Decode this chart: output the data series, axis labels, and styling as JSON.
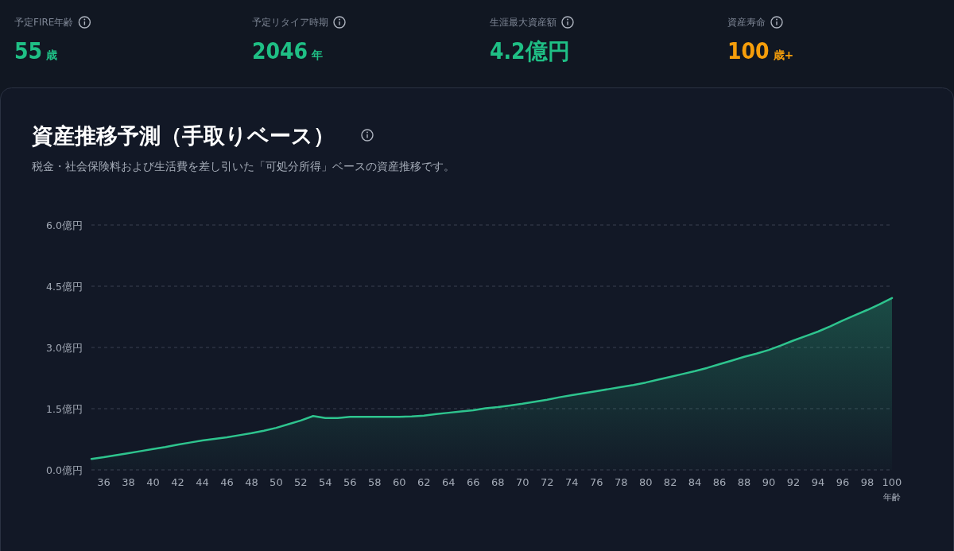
{
  "chart_data": [
    {
      "type": "other",
      "title": "予定FIRE年齢",
      "annotations": [
        "55",
        "歳"
      ],
      "color": "#1fbf85"
    },
    {
      "type": "other",
      "title": "予定リタイア時期",
      "annotations": [
        "2046",
        "年"
      ],
      "color": "#1fbf85"
    },
    {
      "type": "other",
      "title": "生涯最大資産額",
      "annotations": [
        "4.2億円"
      ],
      "color": "#1fbf85"
    },
    {
      "type": "other",
      "title": "資産寿命",
      "annotations": [
        "100",
        "歳+"
      ],
      "color": "#f59e0b"
    },
    {
      "type": "area",
      "title": "資産推移予測（手取りベース）",
      "subtitle": "税金・社会保険料および生活費を差し引いた「可処分所得」ベースの資産推移です。",
      "xlabel": "年齢",
      "x": [
        35,
        36,
        37,
        38,
        39,
        40,
        41,
        42,
        43,
        44,
        45,
        46,
        47,
        48,
        49,
        50,
        51,
        52,
        53,
        54,
        55,
        56,
        58,
        60,
        61,
        62,
        63,
        64,
        65,
        66,
        67,
        68,
        69,
        70,
        71,
        72,
        73,
        74,
        75,
        76,
        77,
        78,
        79,
        80,
        81,
        82,
        83,
        84,
        85,
        86,
        87,
        88,
        89,
        90,
        91,
        92,
        93,
        94,
        95,
        96,
        97,
        98,
        99,
        100
      ],
      "values": [
        0.27,
        0.31,
        0.36,
        0.41,
        0.46,
        0.51,
        0.56,
        0.62,
        0.67,
        0.72,
        0.76,
        0.8,
        0.85,
        0.9,
        0.96,
        1.03,
        1.12,
        1.21,
        1.32,
        1.27,
        1.27,
        1.3,
        1.3,
        1.3,
        1.31,
        1.33,
        1.37,
        1.4,
        1.43,
        1.46,
        1.51,
        1.54,
        1.58,
        1.62,
        1.67,
        1.72,
        1.78,
        1.83,
        1.88,
        1.93,
        1.98,
        2.03,
        2.08,
        2.14,
        2.21,
        2.28,
        2.35,
        2.42,
        2.5,
        2.59,
        2.68,
        2.77,
        2.85,
        2.94,
        3.05,
        3.17,
        3.28,
        3.39,
        3.52,
        3.66,
        3.79,
        3.92,
        4.06,
        4.21
      ],
      "color": "#2ec48e",
      "xlim": [
        35,
        100
      ],
      "xticks": [
        36,
        38,
        40,
        42,
        44,
        46,
        48,
        50,
        52,
        54,
        56,
        58,
        60,
        62,
        64,
        66,
        68,
        70,
        72,
        74,
        76,
        78,
        80,
        82,
        84,
        86,
        88,
        90,
        92,
        94,
        96,
        98,
        100
      ],
      "ylim": [
        0,
        6
      ],
      "yticks": [
        {
          "value": 0,
          "label": "0.0億円"
        },
        {
          "value": 1.5,
          "label": "1.5億円"
        },
        {
          "value": 3,
          "label": "3.0億円"
        },
        {
          "value": 4.5,
          "label": "4.5億円"
        },
        {
          "value": 6,
          "label": "6.0億円"
        }
      ],
      "grid": "y",
      "line_style": "solid",
      "marker": "none"
    }
  ]
}
